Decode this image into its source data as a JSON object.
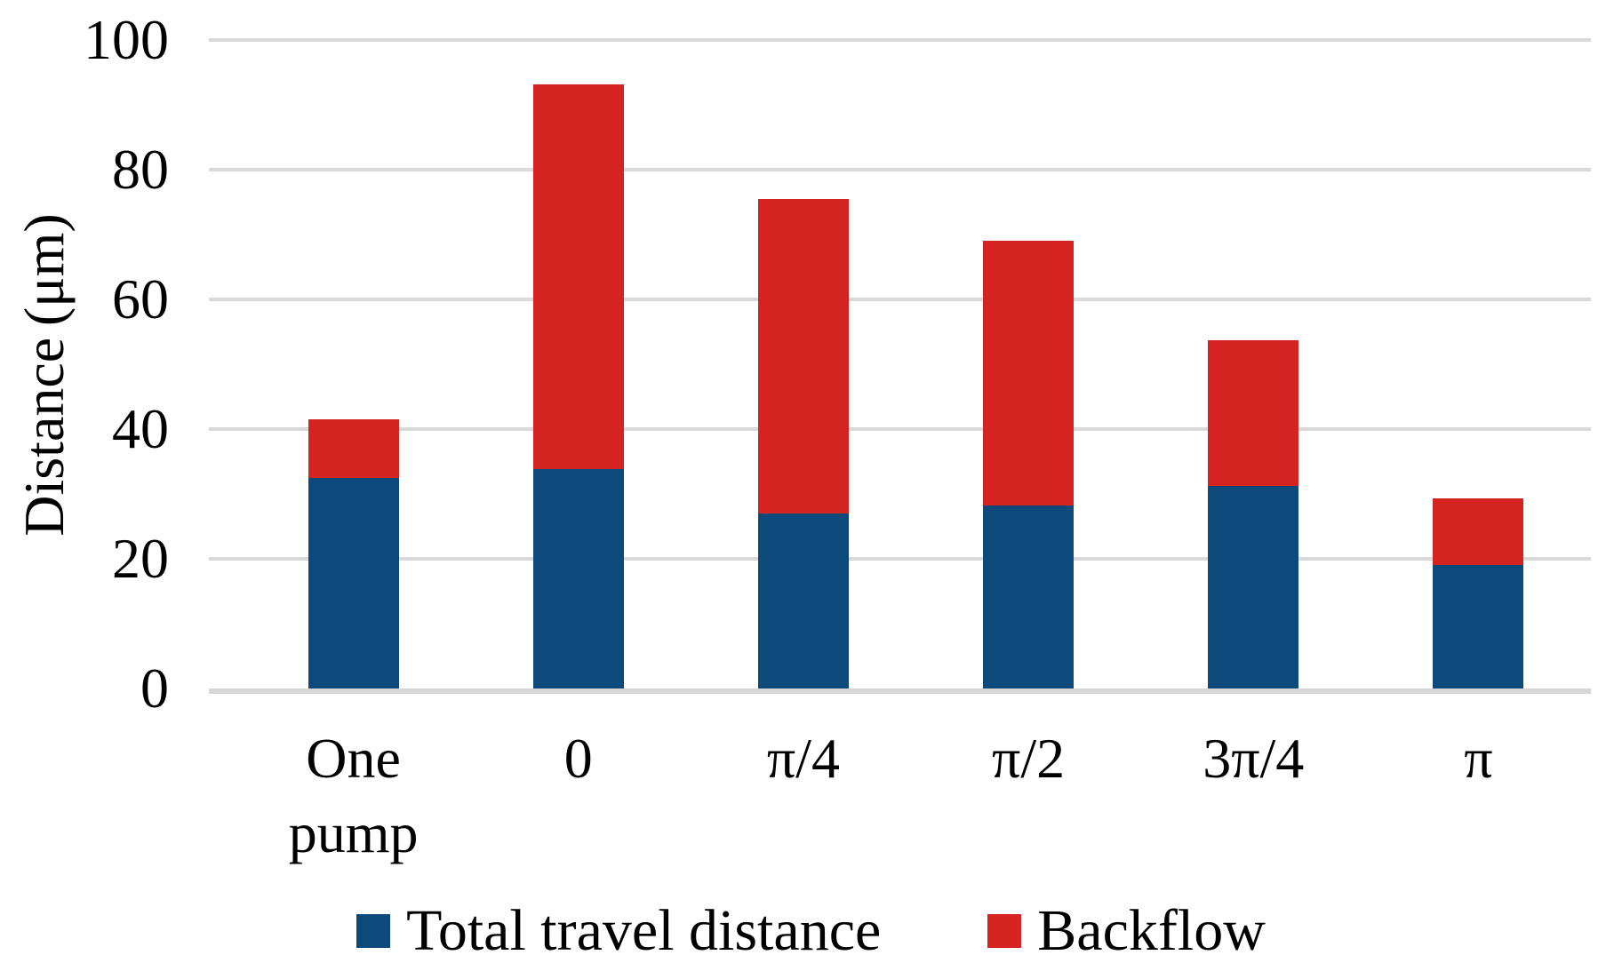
{
  "chart_data": {
    "type": "bar",
    "stacked": true,
    "title": "",
    "categories": [
      "One pump",
      "0",
      "π/4",
      "π/2",
      "3π/4",
      "π"
    ],
    "series": [
      {
        "name": "Total travel distance",
        "color": "#0d4a7b",
        "values": [
          32.4,
          33.8,
          27.0,
          28.2,
          31.3,
          19.0
        ]
      },
      {
        "name": "Backflow",
        "color": "#d52322",
        "values": [
          9.1,
          59.3,
          48.5,
          40.8,
          22.4,
          10.3
        ]
      }
    ],
    "stacked_totals": [
      41.5,
      93.1,
      75.5,
      69.0,
      53.7,
      29.3
    ],
    "xlabel": "",
    "ylabel": "Distance (μm)",
    "ylim": [
      0,
      100
    ],
    "yticks": [
      0,
      20,
      40,
      60,
      80,
      100
    ],
    "grid": "horizontal",
    "gridline_color": "#d9d9d9",
    "axis_line_color": "#d6d6d6",
    "text_color": "#000000",
    "background_color": "#ffffff",
    "legend_position": "bottom"
  }
}
